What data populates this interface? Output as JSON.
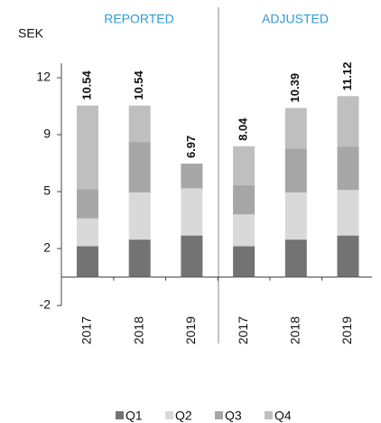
{
  "chart_data": {
    "type": "stacked_bar",
    "unit_label": "SEK",
    "groups": [
      "REPORTED",
      "ADJUSTED"
    ],
    "categories": [
      "2017",
      "2018",
      "2019",
      "2017",
      "2018",
      "2019"
    ],
    "series": [
      {
        "name": "Q1",
        "color": "#737373",
        "values": [
          1.9,
          2.3,
          2.55,
          1.9,
          2.3,
          2.55
        ]
      },
      {
        "name": "Q2",
        "color": "#d9d9d9",
        "values": [
          1.7,
          2.9,
          2.9,
          1.95,
          2.9,
          2.8
        ]
      },
      {
        "name": "Q3",
        "color": "#a6a6a6",
        "values": [
          1.8,
          3.1,
          1.52,
          1.8,
          2.7,
          2.65
        ]
      },
      {
        "name": "Q4",
        "color": "#bfbfbf",
        "values": [
          5.14,
          2.24,
          null,
          2.39,
          2.49,
          3.12
        ]
      }
    ],
    "totals": [
      10.54,
      10.54,
      6.97,
      8.04,
      10.39,
      11.12
    ],
    "ylim": [
      -1.75,
      13.5
    ],
    "yticks": [
      {
        "value": -1.75,
        "label": "-2"
      },
      {
        "value": 1.75,
        "label": "2"
      },
      {
        "value": 5.25,
        "label": "5"
      },
      {
        "value": 8.75,
        "label": "9"
      },
      {
        "value": 12.25,
        "label": "12"
      }
    ]
  }
}
